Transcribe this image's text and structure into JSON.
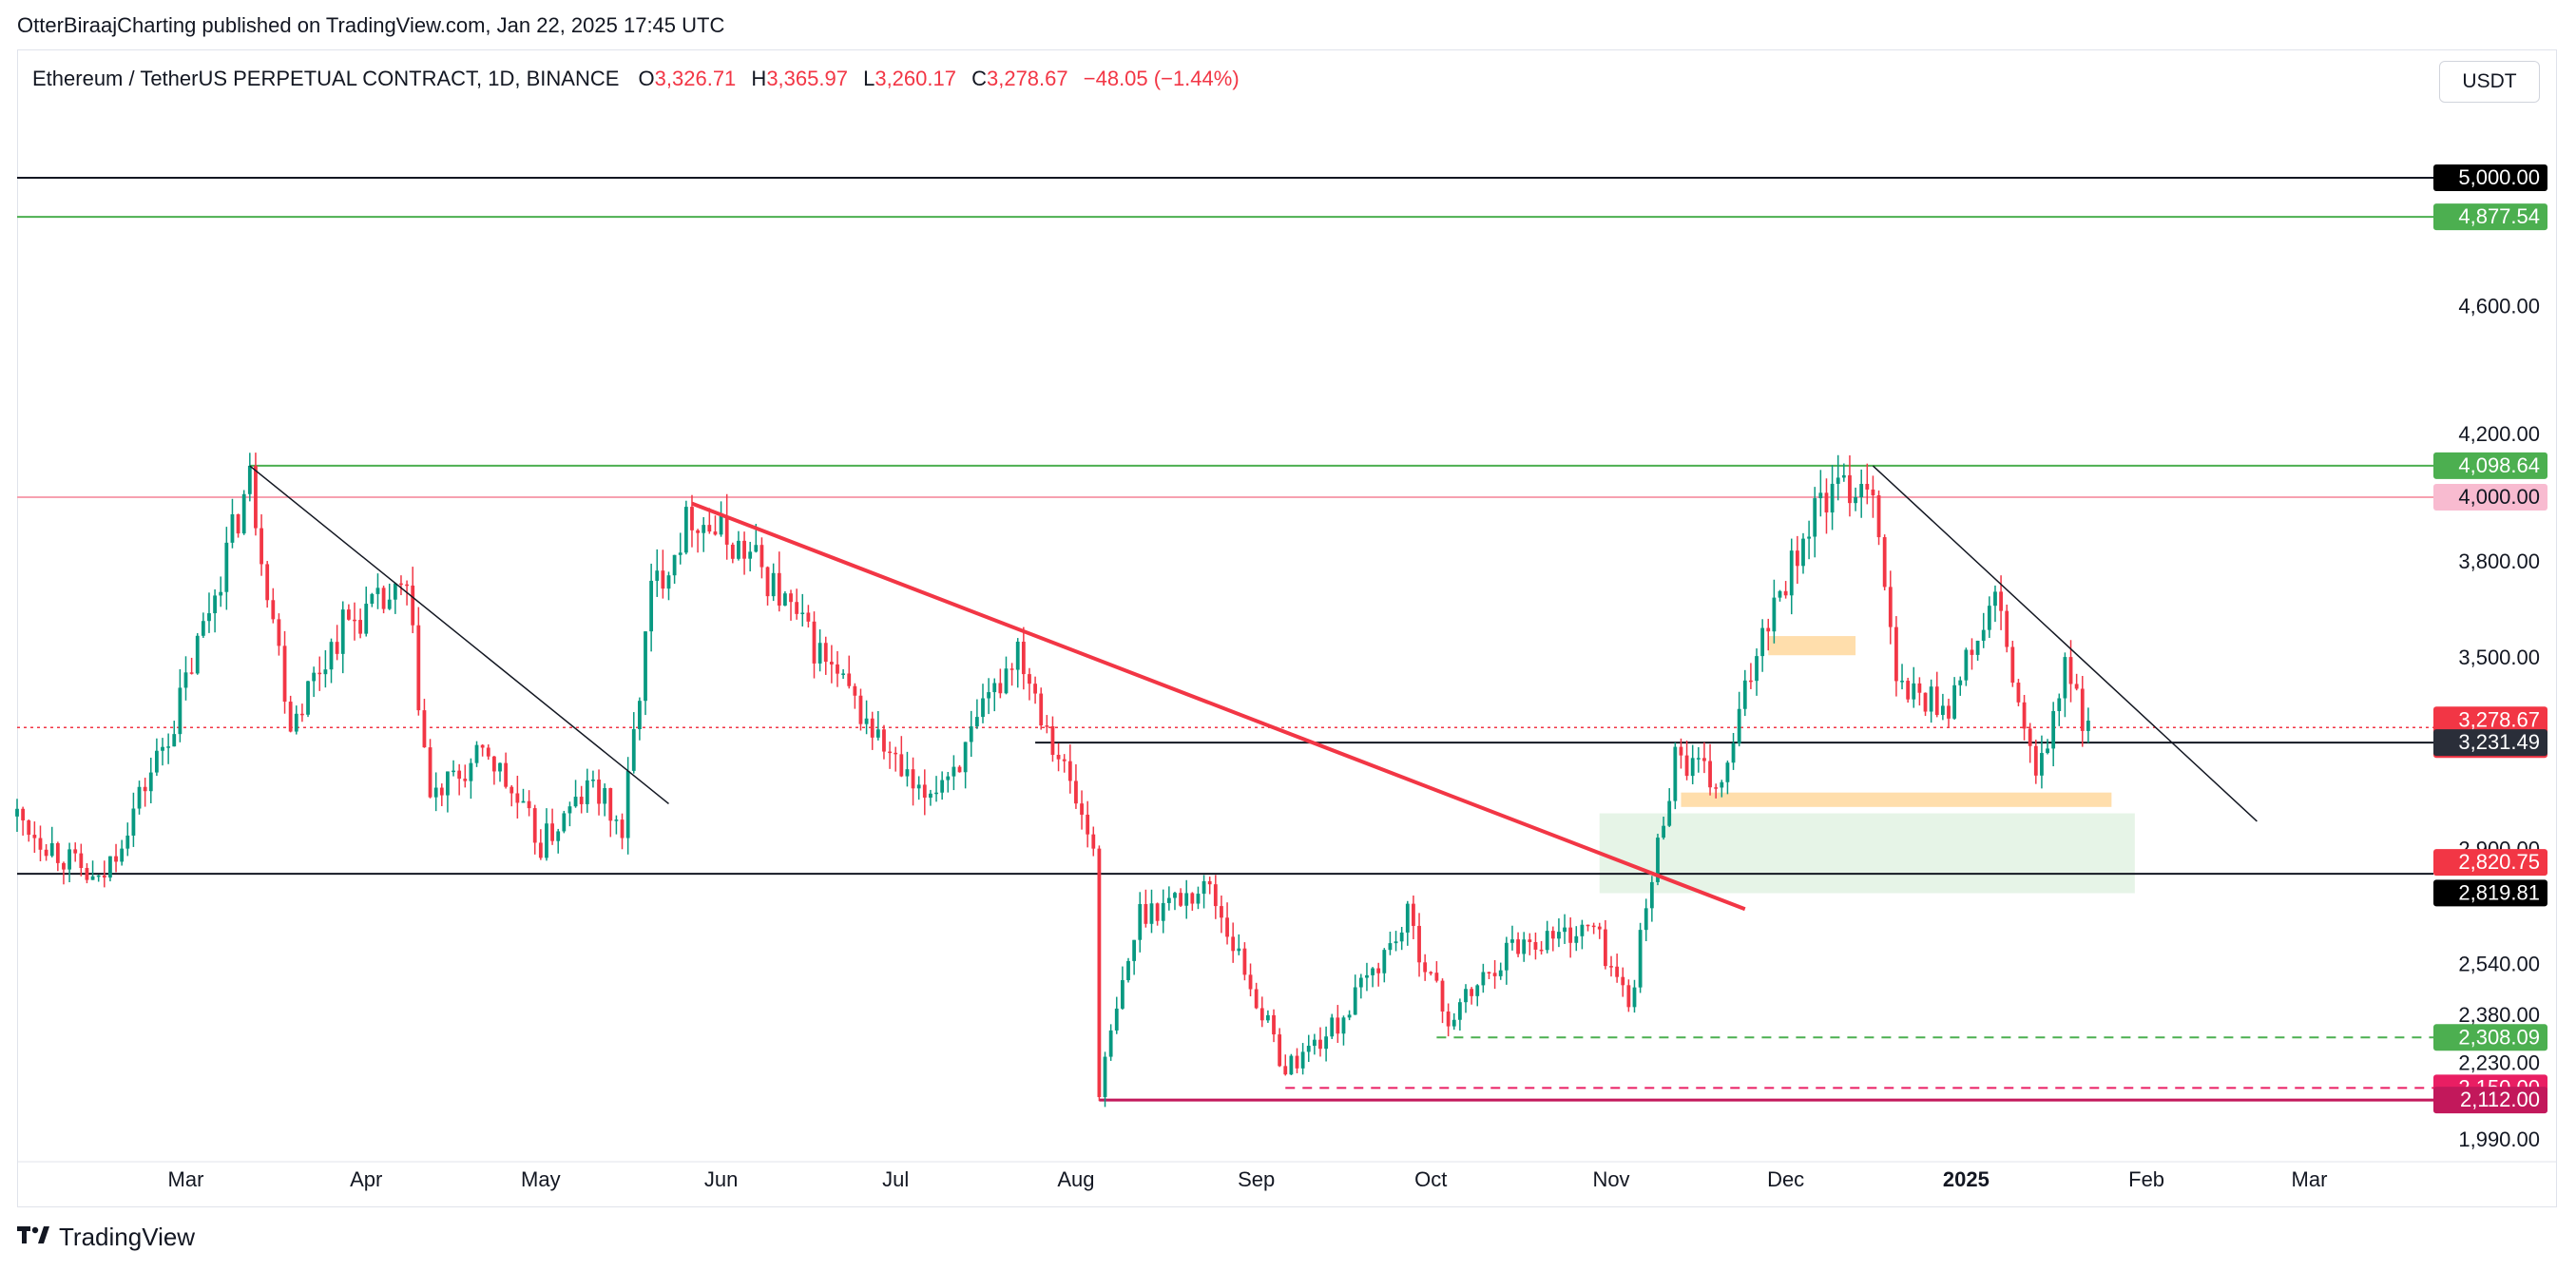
{
  "publisher": "OtterBiraajCharting published on TradingView.com, Jan 22, 2025 17:45 UTC",
  "header": {
    "symbol": "Ethereum / TetherUS PERPETUAL CONTRACT, 1D, BINANCE",
    "open_label": "O",
    "open": "3,326.71",
    "high_label": "H",
    "high": "3,365.97",
    "low_label": "L",
    "low": "3,260.17",
    "close_label": "C",
    "close": "3,278.67",
    "change": "−48.05 (−1.44%)"
  },
  "currency_button": "USDT",
  "footer": {
    "brand": "TradingView",
    "logo_icon": "tradingview-logo-icon"
  },
  "colors": {
    "up": "#089981",
    "down": "#f23645",
    "trendline_red": "#f23645",
    "support_green": "#4caf50",
    "pink": "#f7a1b0",
    "magenta": "#c2185b"
  },
  "chart_data": {
    "type": "candlestick",
    "x_range": [
      "2024-02-01",
      "2025-03-22"
    ],
    "ylim": [
      1925,
      5140
    ],
    "x_ticks": [
      {
        "label": "Mar",
        "date": "2024-03-01"
      },
      {
        "label": "Apr",
        "date": "2024-04-01"
      },
      {
        "label": "May",
        "date": "2024-05-01"
      },
      {
        "label": "Jun",
        "date": "2024-06-01"
      },
      {
        "label": "Jul",
        "date": "2024-07-01"
      },
      {
        "label": "Aug",
        "date": "2024-08-01"
      },
      {
        "label": "Sep",
        "date": "2024-09-01"
      },
      {
        "label": "Oct",
        "date": "2024-10-01"
      },
      {
        "label": "Nov",
        "date": "2024-11-01"
      },
      {
        "label": "Dec",
        "date": "2024-12-01"
      },
      {
        "label": "2025",
        "date": "2025-01-01"
      },
      {
        "label": "Feb",
        "date": "2025-02-01"
      },
      {
        "label": "Mar",
        "date": "2025-03-01"
      }
    ],
    "y_ticks": [
      "4,600.00",
      "4,200.00",
      "3,800.00",
      "3,500.00",
      "2,900.00",
      "2,540.00",
      "2,380.00",
      "2,230.00",
      "1,990.00"
    ],
    "price_path": [
      [
        "2024-02-01",
        3000
      ],
      [
        "2024-02-15",
        2780
      ],
      [
        "2024-02-28",
        3300
      ],
      [
        "2024-03-12",
        4060
      ],
      [
        "2024-03-19",
        3300
      ],
      [
        "2024-03-28",
        3600
      ],
      [
        "2024-04-08",
        3700
      ],
      [
        "2024-04-12",
        3050
      ],
      [
        "2024-04-22",
        3200
      ],
      [
        "2024-05-01",
        2910
      ],
      [
        "2024-05-10",
        3100
      ],
      [
        "2024-05-15",
        2950
      ],
      [
        "2024-05-20",
        3700
      ],
      [
        "2024-05-27",
        3950
      ],
      [
        "2024-06-07",
        3800
      ],
      [
        "2024-06-24",
        3350
      ],
      [
        "2024-07-05",
        3050
      ],
      [
        "2024-07-13",
        3200
      ],
      [
        "2024-07-22",
        3540
      ],
      [
        "2024-08-04",
        2900
      ],
      [
        "2024-08-05",
        2150
      ],
      [
        "2024-08-12",
        2700
      ],
      [
        "2024-08-24",
        2780
      ],
      [
        "2024-09-06",
        2210
      ],
      [
        "2024-09-15",
        2350
      ],
      [
        "2024-09-27",
        2680
      ],
      [
        "2024-10-04",
        2360
      ],
      [
        "2024-10-15",
        2600
      ],
      [
        "2024-10-29",
        2650
      ],
      [
        "2024-11-04",
        2410
      ],
      [
        "2024-11-12",
        3200
      ],
      [
        "2024-11-20",
        3080
      ],
      [
        "2024-11-27",
        3600
      ],
      [
        "2024-12-07",
        3990
      ],
      [
        "2024-12-16",
        4060
      ],
      [
        "2024-12-20",
        3400
      ],
      [
        "2024-12-29",
        3350
      ],
      [
        "2025-01-06",
        3680
      ],
      [
        "2025-01-13",
        3100
      ],
      [
        "2025-01-18",
        3450
      ],
      [
        "2025-01-22",
        3278.67
      ]
    ],
    "price_levels": [
      {
        "value": 5000.0,
        "label": "5,000.00",
        "style": "solid",
        "color": "#131722",
        "badge_bg": "#000000",
        "badge_fg": "#ffffff",
        "start": "2024-02-01"
      },
      {
        "value": 4877.54,
        "label": "4,877.54",
        "style": "solid",
        "color": "#4caf50",
        "badge_bg": "#4caf50",
        "badge_fg": "#ffffff",
        "start": "2024-02-01"
      },
      {
        "value": 4098.64,
        "label": "4,098.64",
        "style": "solid",
        "color": "#4caf50",
        "badge_bg": "#4caf50",
        "badge_fg": "#ffffff",
        "start": "2024-03-12"
      },
      {
        "value": 4000.0,
        "label": "4,000.00",
        "style": "solid",
        "color": "#f7a1b0",
        "badge_bg": "#f8bbd0",
        "badge_fg": "#131722",
        "start": "2024-02-01"
      },
      {
        "value": 3278.67,
        "label": "3,278.67",
        "style": "dotted",
        "color": "#f23645",
        "badge_bg": "#f23645",
        "badge_fg": "#ffffff",
        "start": "2024-02-01",
        "sublabel": "06:14:40"
      },
      {
        "value": 3231.49,
        "label": "3,231.49",
        "style": "solid",
        "color": "#131722",
        "badge_bg": "#2a2e39",
        "badge_fg": "#ffffff",
        "start": "2024-07-25"
      },
      {
        "value": 2820.75,
        "label": "2,820.75",
        "style": "solid",
        "color": "#131722",
        "badge_bg": "#f23645",
        "badge_fg": "#ffffff",
        "start": "2024-02-01"
      },
      {
        "value": 2819.81,
        "label": "2,819.81",
        "style": "none",
        "color": "#131722",
        "badge_bg": "#000000",
        "badge_fg": "#ffffff",
        "start": "2024-02-01"
      },
      {
        "value": 2308.09,
        "label": "2,308.09",
        "style": "dashed",
        "color": "#4caf50",
        "badge_bg": "#4caf50",
        "badge_fg": "#ffffff",
        "start": "2024-10-02"
      },
      {
        "value": 2150.0,
        "label": "2,150.00",
        "style": "dashed",
        "color": "#e91e63",
        "badge_bg": "#e91e63",
        "badge_fg": "#ffffff",
        "start": "2024-09-06"
      },
      {
        "value": 2112.0,
        "label": "2,112.00",
        "style": "solid",
        "color": "#c2185b",
        "badge_bg": "#c2185b",
        "badge_fg": "#ffffff",
        "start": "2024-08-05"
      }
    ],
    "trendlines": [
      {
        "name": "",
        "color": "#131722",
        "width": 1.5,
        "from": [
          "2024-03-12",
          4098
        ],
        "to": [
          "2024-05-23",
          3040
        ]
      },
      {
        "name": "",
        "color": "#f23645",
        "width": 4,
        "from": [
          "2024-05-27",
          3980
        ],
        "to": [
          "2024-11-24",
          2710
        ]
      },
      {
        "name": "",
        "color": "#131722",
        "width": 1.5,
        "from": [
          "2024-12-16",
          4098
        ],
        "to": [
          "2025-02-20",
          2985
        ]
      }
    ],
    "zones": [
      {
        "color": "#c8e6c9",
        "opacity": 0.45,
        "from": [
          "2024-10-30",
          3010
        ],
        "to": [
          "2025-01-30",
          2760
        ]
      },
      {
        "color": "#ffcc80",
        "opacity": 0.65,
        "from": [
          "2024-11-13",
          3075
        ],
        "to": [
          "2025-01-26",
          3030
        ]
      },
      {
        "color": "#ffcc80",
        "opacity": 0.65,
        "from": [
          "2024-11-28",
          3565
        ],
        "to": [
          "2024-12-13",
          3505
        ]
      }
    ]
  }
}
